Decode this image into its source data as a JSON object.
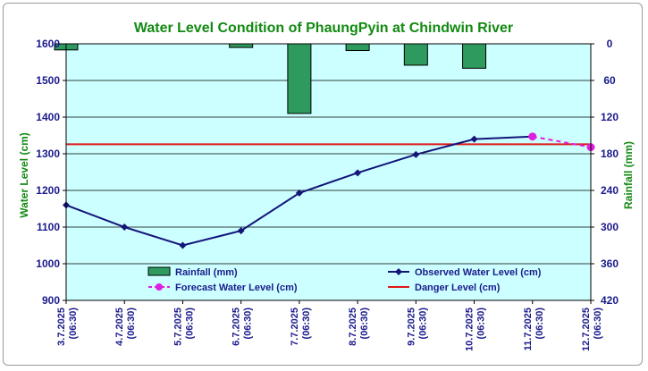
{
  "chart_data": {
    "type": "line",
    "title": "Water Level Condition of PhaungPyin at Chindwin River",
    "ylabel": "Water Level (cm)",
    "y2label": "Rainfall (mm)",
    "ylim": [
      900,
      1600
    ],
    "yticks": [
      900,
      1000,
      1100,
      1200,
      1300,
      1400,
      1500,
      1600
    ],
    "y2lim": [
      0,
      420
    ],
    "y2ticks": [
      0,
      60,
      120,
      180,
      240,
      300,
      360,
      420
    ],
    "y2_inverted": true,
    "categories": [
      "3.7.2025 (06:30)",
      "4.7.2025 (06:30)",
      "5.7.2025 (06:30)",
      "6.7.2025 (06:30)",
      "7.7.2025 (06:30)",
      "8.7.2025 (06:30)",
      "9.7.2025 (06:30)",
      "10.7.2025 (06:30)",
      "11.7.2025 (06:30)",
      "12.7.2025 (06:30)"
    ],
    "category_lines": [
      [
        "3.7.2025",
        "(06:30)"
      ],
      [
        "4.7.2025",
        "(06:30)"
      ],
      [
        "5.7.2025",
        "(06:30)"
      ],
      [
        "6.7.2025",
        "(06:30)"
      ],
      [
        "7.7.2025",
        "(06:30)"
      ],
      [
        "8.7.2025",
        "(06:30)"
      ],
      [
        "9.7.2025",
        "(06:30)"
      ],
      [
        "10.7.2025",
        "(06:30)"
      ],
      [
        "11.7.2025",
        "(06:30)"
      ],
      [
        "12.7.2025",
        "(06:30)"
      ]
    ],
    "series": [
      {
        "name": "Observed Water Level (cm)",
        "type": "line",
        "axis": "left",
        "color": "#14147a",
        "marker": "diamond",
        "values": [
          1160,
          1100,
          1050,
          1090,
          1193,
          1248,
          1298,
          1340,
          1347,
          null
        ]
      },
      {
        "name": "Forecast Water Level (cm)",
        "type": "line-dashed",
        "axis": "left",
        "color": "#e01ee0",
        "marker": "circle",
        "values": [
          null,
          null,
          null,
          null,
          null,
          null,
          null,
          null,
          1347,
          1318
        ]
      },
      {
        "name": "Danger Level (cm)",
        "type": "hline",
        "axis": "left",
        "color": "#e01818",
        "value": 1326
      },
      {
        "name": "Rainfall (mm)",
        "type": "bar",
        "axis": "right",
        "color": "#2e9a5e",
        "values": [
          10,
          0,
          0,
          6,
          114,
          11,
          35,
          40,
          0,
          0
        ]
      }
    ],
    "legend": [
      {
        "name": "Rainfall (mm)",
        "kind": "bar"
      },
      {
        "name": "Observed Water Level (cm)",
        "kind": "line-diamond"
      },
      {
        "name": "Forecast Water Level (cm)",
        "kind": "dashed-circle"
      },
      {
        "name": "Danger Level (cm)",
        "kind": "line"
      }
    ],
    "legend_position": "lower-middle",
    "plot_background": "#ccffff",
    "grid": true
  }
}
